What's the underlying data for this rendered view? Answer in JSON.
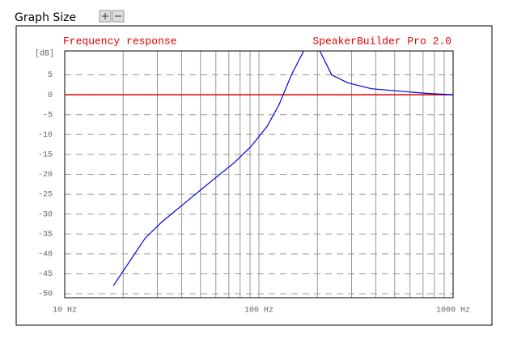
{
  "header": {
    "label": "Graph Size"
  },
  "chart_data": {
    "type": "line",
    "title": "Frequency response",
    "subtitle": "SpeakerBuilder Pro 2.0",
    "y_label": "[dB]",
    "x": [
      17.8,
      21.5,
      26,
      31.6,
      42,
      56,
      75,
      91,
      110,
      127,
      147,
      170,
      185,
      206,
      237,
      287,
      380,
      562,
      750,
      1000
    ],
    "series": [
      {
        "name": "Frequency response",
        "color": "#0000e0",
        "values": [
          -48,
          -42,
          -36,
          -32,
          -27,
          -22,
          -17,
          -13,
          -8,
          -2.5,
          5,
          11,
          null,
          11,
          5,
          3,
          1.5,
          0.8,
          0.3,
          0
        ]
      }
    ],
    "xlim": [
      10,
      1000
    ],
    "log_x": true,
    "xticks": [
      {
        "value": 10,
        "label": "10 Hz"
      },
      {
        "value": 100,
        "label": "100 Hz"
      },
      {
        "value": 1000,
        "label": "1000 Hz"
      }
    ],
    "xminor_ticks": [
      20,
      30,
      40,
      50,
      60,
      70,
      80,
      90,
      200,
      300,
      400,
      500,
      600,
      700,
      800,
      900
    ],
    "ylim": [
      -51,
      11
    ],
    "yticks": [
      5,
      0,
      -5,
      -10,
      -15,
      -20,
      -25,
      -30,
      -35,
      -40,
      -45,
      -50
    ],
    "reference_line": {
      "value": 0,
      "color": "#e00000"
    },
    "title_color": "#e00000",
    "grid": true
  }
}
